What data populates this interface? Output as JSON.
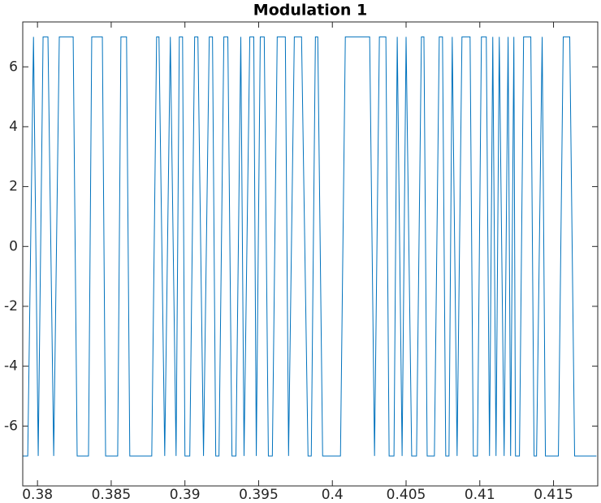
{
  "chart_data": {
    "type": "line",
    "title": "Modulation 1",
    "xlim": [
      0.379,
      0.418
    ],
    "ylim": [
      -8,
      7.5
    ],
    "xticks": [
      0.38,
      0.385,
      0.39,
      0.395,
      0.4,
      0.405,
      0.41,
      0.415
    ],
    "yticks": [
      -6,
      -4,
      -2,
      0,
      2,
      4,
      6
    ],
    "series": [
      {
        "color": "#0072bd",
        "x": [
          0.37901,
          0.37934,
          0.37973,
          0.38005,
          0.38038,
          0.38071,
          0.3811,
          0.38148,
          0.38242,
          0.38269,
          0.38346,
          0.38368,
          0.3844,
          0.38462,
          0.38544,
          0.38566,
          0.38604,
          0.38626,
          0.38775,
          0.38808,
          0.38824,
          0.38863,
          0.38901,
          0.3894,
          0.38962,
          0.38984,
          0.39,
          0.39033,
          0.39066,
          0.39088,
          0.39126,
          0.39165,
          0.39187,
          0.39209,
          0.39231,
          0.39264,
          0.39291,
          0.39319,
          0.39346,
          0.39379,
          0.39401,
          0.3944,
          0.39467,
          0.39484,
          0.39511,
          0.39538,
          0.39566,
          0.39593,
          0.39626,
          0.39681,
          0.39703,
          0.39742,
          0.39791,
          0.39835,
          0.39857,
          0.39885,
          0.39901,
          0.39934,
          0.39967,
          0.40055,
          0.40088,
          0.40253,
          0.40286,
          0.40319,
          0.40363,
          0.40385,
          0.40418,
          0.4044,
          0.40473,
          0.405,
          0.40538,
          0.40571,
          0.40604,
          0.40621,
          0.40643,
          0.40692,
          0.40725,
          0.40747,
          0.40769,
          0.40791,
          0.40813,
          0.40846,
          0.40879,
          0.40934,
          0.40956,
          0.40984,
          0.41011,
          0.41044,
          0.41066,
          0.41088,
          0.4111,
          0.41132,
          0.41165,
          0.41192,
          0.41209,
          0.41231,
          0.41242,
          0.41269,
          0.41297,
          0.41346,
          0.41368,
          0.41385,
          0.41423,
          0.41445,
          0.41478,
          0.41533,
          0.41566,
          0.4161,
          0.41643,
          0.41791
        ],
        "values": [
          -7,
          -7,
          7,
          -7,
          7,
          7,
          -7,
          7,
          7,
          -7,
          -7,
          7,
          7,
          -7,
          -7,
          7,
          7,
          -7,
          -7,
          7,
          7,
          -7,
          7,
          -7,
          7,
          7,
          -7,
          -7,
          7,
          7,
          -7,
          7,
          7,
          -7,
          -7,
          7,
          7,
          -7,
          -7,
          7,
          -7,
          7,
          7,
          -7,
          7,
          7,
          -7,
          -7,
          7,
          7,
          -7,
          7,
          7,
          -7,
          -7,
          7,
          7,
          -7,
          -7,
          -7,
          7,
          7,
          -7,
          7,
          7,
          -7,
          -7,
          7,
          -7,
          7,
          -7,
          -7,
          7,
          7,
          -7,
          -7,
          7,
          7,
          -7,
          -7,
          7,
          -7,
          7,
          7,
          -7,
          -7,
          7,
          7,
          -7,
          7,
          -7,
          7,
          -7,
          7,
          -7,
          7,
          -7,
          -7,
          7,
          7,
          -7,
          -7,
          7,
          -7,
          -7,
          -7,
          7,
          7,
          -7,
          -7
        ]
      }
    ]
  }
}
